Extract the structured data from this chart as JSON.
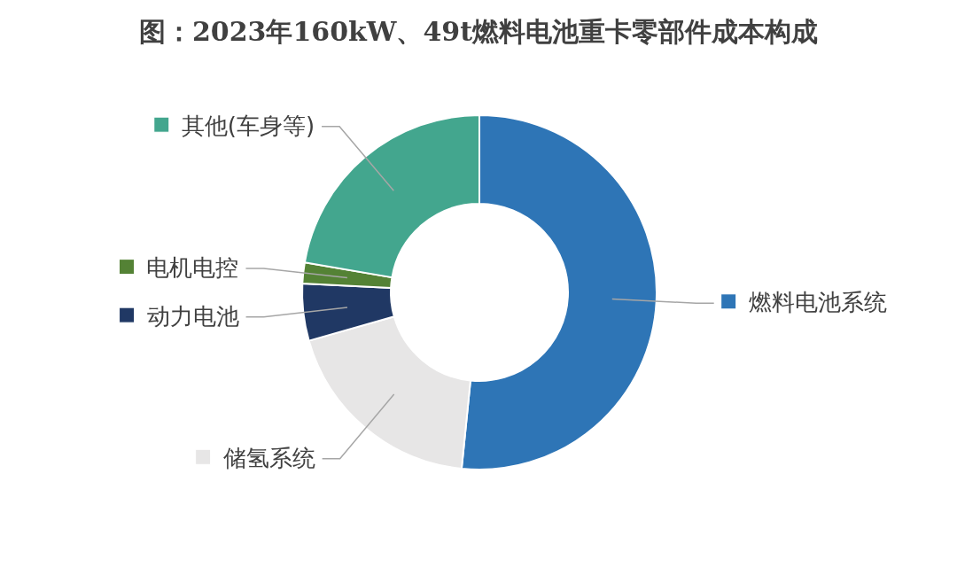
{
  "chart_data": {
    "type": "donut",
    "title": "图：2023年160kW、49t燃料电池重卡零部件成本构成",
    "categories": [
      "燃料电池系统",
      "储氢系统",
      "动力电池",
      "电机电控",
      "其他(车身等)"
    ],
    "values": [
      51.6,
      19,
      5.2,
      1.9,
      22.3
    ],
    "legend": "top right",
    "colors": [
      "#2e75b6",
      "#e7e6e6",
      "#203864",
      "#548235",
      "#43a68e"
    ]
  }
}
